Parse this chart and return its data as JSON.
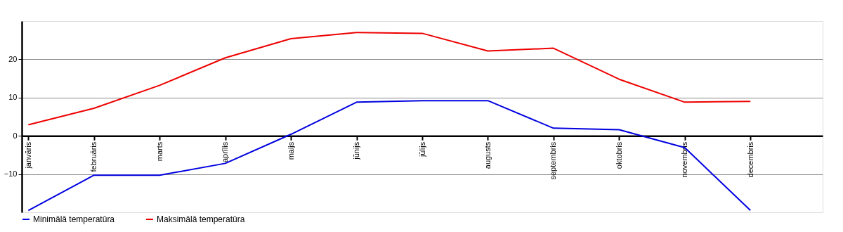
{
  "chart_data": {
    "type": "line",
    "categories": [
      "janvāris",
      "februāris",
      "marts",
      "aprīlis",
      "maijs",
      "jūnijs",
      "jūlijs",
      "augusts",
      "septembris",
      "oktobris",
      "novembris",
      "decembris"
    ],
    "series": [
      {
        "name": "Minimālā temperatūra",
        "color": "#0000e0",
        "values": [
          -19.5,
          -10.3,
          -10.3,
          -7.2,
          0.4,
          8.8,
          9.2,
          9.2,
          2.0,
          1.6,
          -3.1,
          -19.5
        ]
      },
      {
        "name": "Maksimālā temperatūra",
        "color": "#ee0000",
        "values": [
          2.9,
          7.2,
          13.2,
          20.4,
          25.4,
          27.0,
          26.8,
          22.2,
          22.9,
          14.8,
          8.8,
          9.0
        ]
      }
    ],
    "ylim": [
      -20,
      30
    ],
    "yticks": [
      -10,
      0,
      10,
      20
    ],
    "grid": "y",
    "legend": "bottom left",
    "marker": "none",
    "line_style": "solid"
  }
}
